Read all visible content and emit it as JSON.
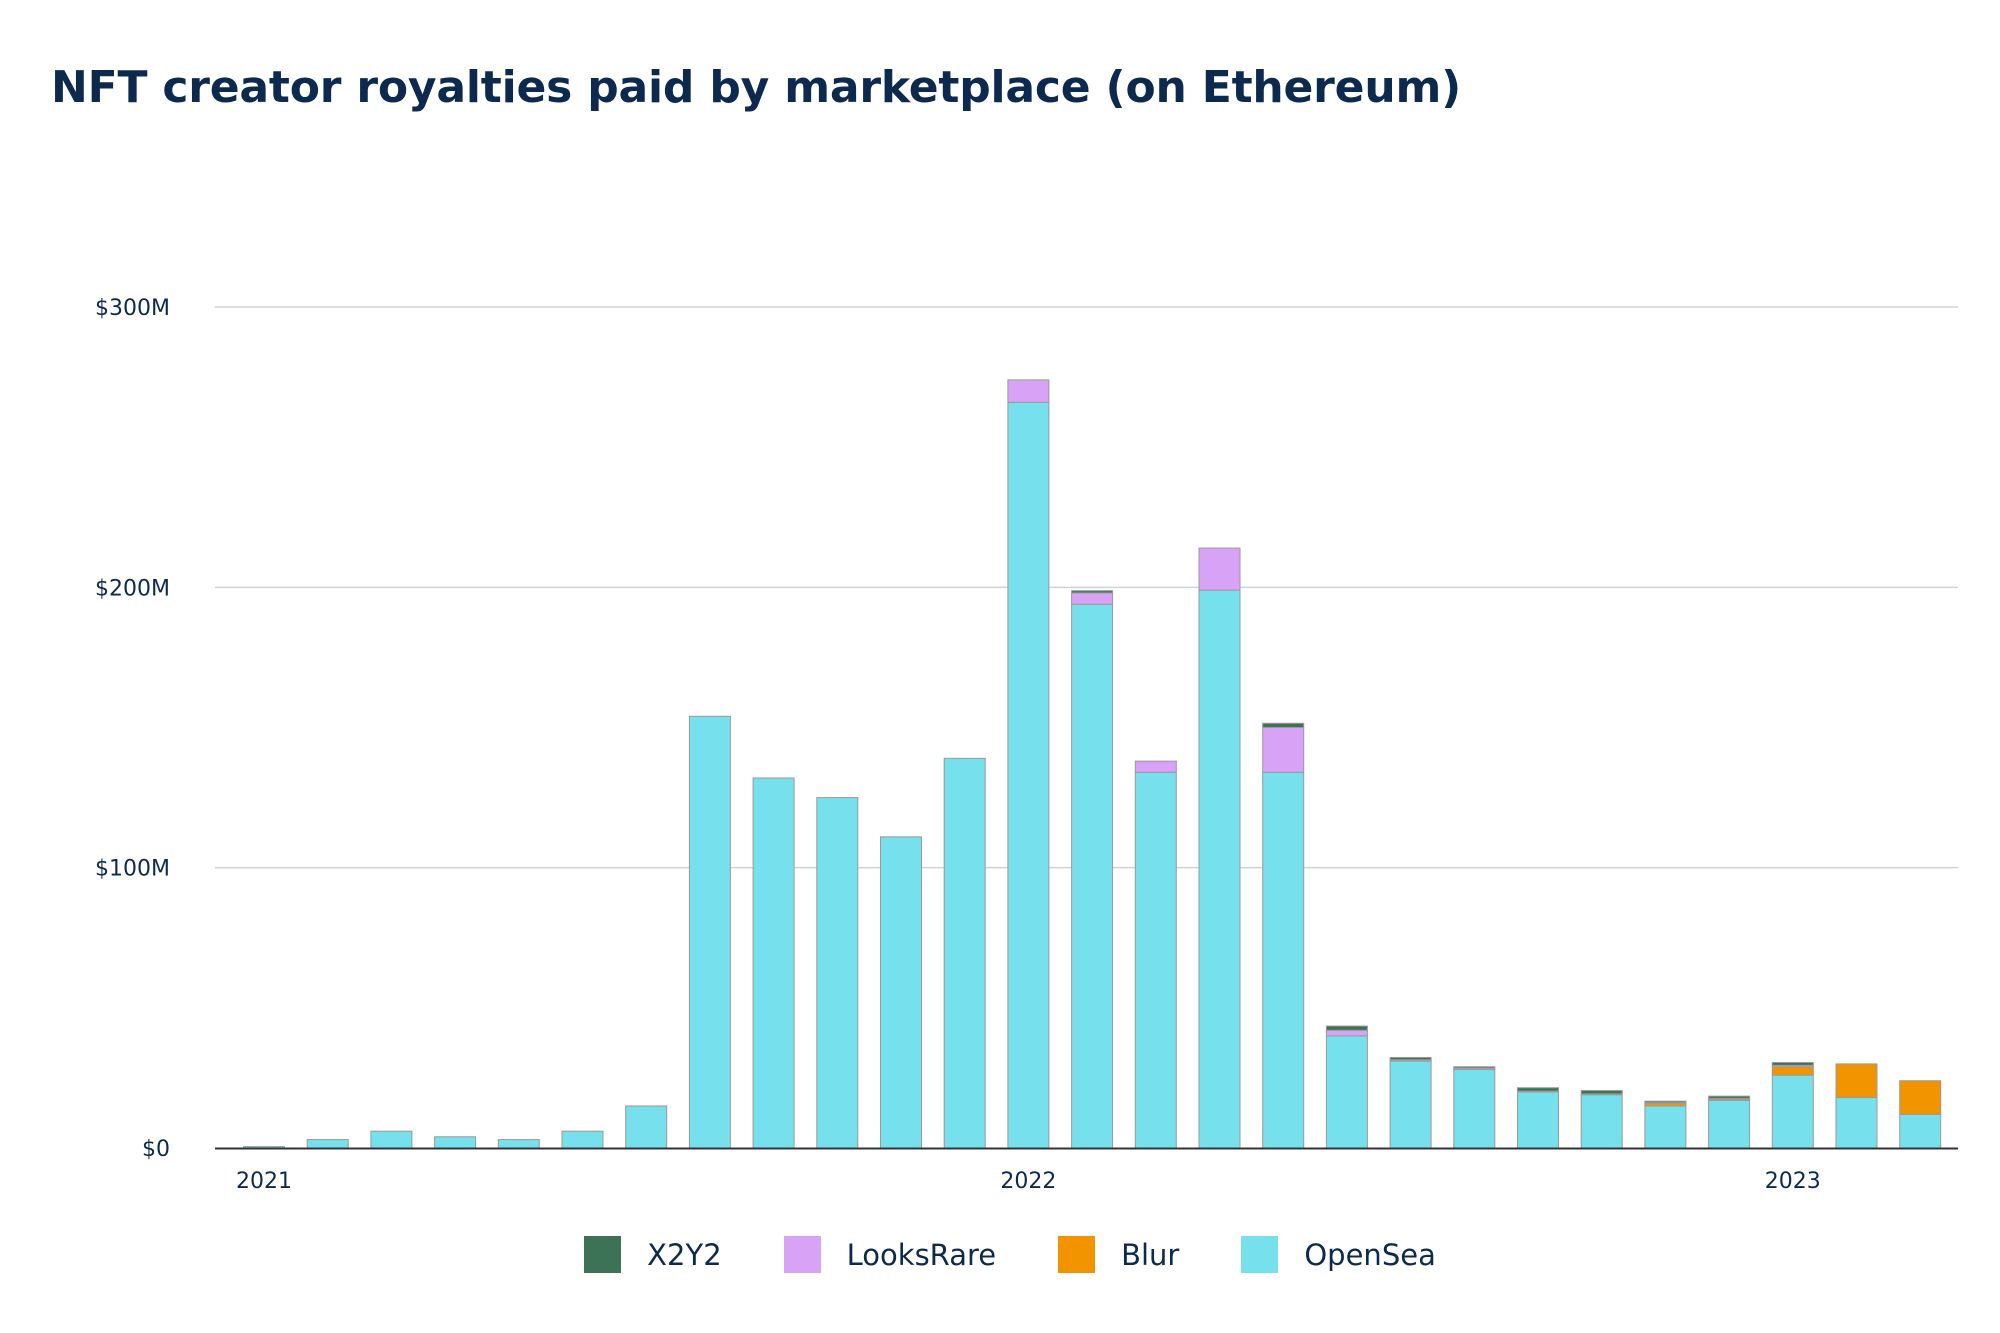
{
  "chart_data": {
    "type": "bar",
    "stacked": true,
    "title": "NFT creator royalties paid by marketplace (on Ethereum)",
    "xlabel": "",
    "ylabel": "",
    "ylim": [
      0,
      300
    ],
    "y_ticks": [
      0,
      100,
      200,
      300
    ],
    "y_tick_labels": [
      "$0",
      "$100M",
      "$200M",
      "$300M"
    ],
    "x_tick_labels": [
      {
        "label": "2021",
        "category_index": 0
      },
      {
        "label": "2022",
        "category_index": 12
      },
      {
        "label": "2023",
        "category_index": 24
      }
    ],
    "categories": [
      "2021-01",
      "2021-02",
      "2021-03",
      "2021-04",
      "2021-05",
      "2021-06",
      "2021-07",
      "2021-08",
      "2021-09",
      "2021-10",
      "2021-11",
      "2021-12",
      "2022-01",
      "2022-02",
      "2022-03",
      "2022-04",
      "2022-05",
      "2022-06",
      "2022-07",
      "2022-08",
      "2022-09",
      "2022-10",
      "2022-11",
      "2022-12",
      "2023-01",
      "2023-02",
      "2023-03"
    ],
    "series": [
      {
        "name": "OpenSea",
        "color": "#76e0ec",
        "values": [
          0.5,
          3,
          6,
          4,
          3,
          6,
          15,
          154,
          132,
          125,
          111,
          139,
          266,
          194,
          134,
          199,
          134,
          40,
          31,
          28,
          20,
          19,
          15,
          17,
          26,
          18,
          12
        ]
      },
      {
        "name": "Blur",
        "color": "#f29400",
        "values": [
          0,
          0,
          0,
          0,
          0,
          0,
          0,
          0,
          0,
          0,
          0,
          0,
          0,
          0,
          0,
          0,
          0,
          0,
          0,
          0,
          0,
          0,
          1,
          0.5,
          3,
          12,
          12
        ]
      },
      {
        "name": "LooksRare",
        "color": "#d8a2f7",
        "values": [
          0,
          0,
          0,
          0,
          0,
          0,
          0,
          0,
          0,
          0,
          0,
          0,
          8,
          4,
          4,
          15,
          16,
          2,
          0.5,
          0.5,
          0.3,
          0.3,
          0.2,
          0.2,
          0.5,
          0,
          0
        ]
      },
      {
        "name": "X2Y2",
        "color": "#3c7356",
        "values": [
          0,
          0,
          0,
          0,
          0,
          0,
          0,
          0,
          0,
          0,
          0,
          0,
          0,
          0.8,
          0,
          0,
          1.5,
          1.5,
          0.8,
          0.5,
          1.2,
          1.2,
          0.5,
          0.8,
          1,
          0,
          0
        ]
      }
    ],
    "legend": {
      "placement": "bottom",
      "order": [
        "X2Y2",
        "LooksRare",
        "Blur",
        "OpenSea"
      ]
    },
    "grid": true,
    "colors": {
      "title": "#0d2a4e",
      "gridline": "#cfd3d8",
      "axis": "#333333",
      "bar_outline": "#9a9a9a"
    }
  }
}
